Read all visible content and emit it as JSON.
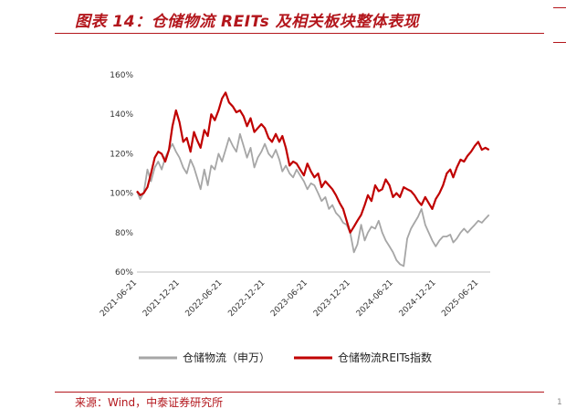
{
  "header": {
    "title": "图表 14：仓储物流 REITs 及相关板块整体表现"
  },
  "footer": {
    "source": "来源：Wind，中泰证券研究所",
    "page_mark": "1"
  },
  "colors": {
    "accent": "#b3161c",
    "series_grey": "#a6a6a6",
    "series_red": "#c00000"
  },
  "chart_data": {
    "type": "line",
    "title": "",
    "xlabel": "",
    "ylabel": "",
    "ylim": [
      60,
      160
    ],
    "yticks": [
      "60%",
      "80%",
      "100%",
      "120%",
      "140%",
      "160%"
    ],
    "xlim": [
      "2021-06-21",
      "2025-08-10"
    ],
    "xticks": [
      "2021-06-21",
      "2021-12-21",
      "2022-06-21",
      "2022-12-21",
      "2023-06-21",
      "2023-12-21",
      "2024-06-21",
      "2024-12-21",
      "2025-06-21"
    ],
    "grid": false,
    "legend": "bottom",
    "x": [
      "2021-06-21",
      "2021-07-05",
      "2021-07-20",
      "2021-08-05",
      "2021-08-20",
      "2021-09-05",
      "2021-09-20",
      "2021-10-05",
      "2021-10-20",
      "2021-11-05",
      "2021-11-20",
      "2021-12-05",
      "2021-12-20",
      "2022-01-05",
      "2022-01-20",
      "2022-02-05",
      "2022-02-20",
      "2022-03-05",
      "2022-03-20",
      "2022-04-05",
      "2022-04-20",
      "2022-05-05",
      "2022-05-20",
      "2022-06-05",
      "2022-06-20",
      "2022-07-05",
      "2022-07-20",
      "2022-08-05",
      "2022-08-20",
      "2022-09-05",
      "2022-09-20",
      "2022-10-05",
      "2022-10-20",
      "2022-11-05",
      "2022-11-20",
      "2022-12-05",
      "2022-12-20",
      "2023-01-05",
      "2023-01-20",
      "2023-02-05",
      "2023-02-20",
      "2023-03-05",
      "2023-03-20",
      "2023-04-05",
      "2023-04-20",
      "2023-05-05",
      "2023-05-20",
      "2023-06-05",
      "2023-06-20",
      "2023-07-05",
      "2023-07-20",
      "2023-08-05",
      "2023-08-20",
      "2023-09-05",
      "2023-09-20",
      "2023-10-05",
      "2023-10-20",
      "2023-11-05",
      "2023-11-20",
      "2023-12-05",
      "2023-12-20",
      "2024-01-05",
      "2024-01-20",
      "2024-02-05",
      "2024-02-20",
      "2024-03-05",
      "2024-03-20",
      "2024-04-05",
      "2024-04-20",
      "2024-05-05",
      "2024-05-20",
      "2024-06-05",
      "2024-06-20",
      "2024-07-05",
      "2024-07-20",
      "2024-08-05",
      "2024-08-20",
      "2024-09-05",
      "2024-09-20",
      "2024-10-05",
      "2024-10-20",
      "2024-11-05",
      "2024-11-20",
      "2024-12-05",
      "2024-12-20",
      "2025-01-05",
      "2025-01-20",
      "2025-02-05",
      "2025-02-20",
      "2025-03-05",
      "2025-03-20",
      "2025-04-05",
      "2025-04-20",
      "2025-05-05",
      "2025-05-20",
      "2025-06-05",
      "2025-06-20",
      "2025-07-05",
      "2025-07-20",
      "2025-08-05"
    ],
    "series": [
      {
        "name": "仓储物流（申万）",
        "color": "#a6a6a6",
        "values": [
          101,
          97,
          100,
          112,
          106,
          113,
          116,
          112,
          118,
          122,
          125,
          121,
          118,
          113,
          110,
          117,
          113,
          108,
          102,
          112,
          104,
          114,
          112,
          120,
          116,
          122,
          128,
          124,
          121,
          130,
          124,
          118,
          123,
          113,
          118,
          121,
          125,
          120,
          118,
          122,
          117,
          111,
          114,
          110,
          108,
          112,
          109,
          106,
          102,
          105,
          104,
          100,
          96,
          98,
          92,
          94,
          90,
          88,
          85,
          84,
          80,
          70,
          74,
          84,
          76,
          80,
          83,
          82,
          86,
          80,
          76,
          73,
          70,
          66,
          64,
          63,
          77,
          82,
          85,
          88,
          92,
          84,
          80,
          76,
          73,
          76,
          78,
          78,
          79,
          75,
          77,
          80,
          82,
          80,
          82,
          84,
          86,
          85,
          87,
          89
        ]
      },
      {
        "name": "仓储物流REITs指数",
        "color": "#c00000",
        "values": [
          101,
          99,
          100,
          103,
          110,
          118,
          121,
          120,
          116,
          122,
          134,
          142,
          136,
          126,
          128,
          121,
          131,
          127,
          123,
          132,
          129,
          140,
          137,
          142,
          148,
          151,
          146,
          144,
          141,
          142,
          139,
          134,
          138,
          131,
          133,
          135,
          133,
          128,
          126,
          130,
          126,
          129,
          123,
          114,
          116,
          115,
          112,
          109,
          115,
          111,
          108,
          110,
          103,
          106,
          104,
          102,
          99,
          95,
          92,
          86,
          80,
          83,
          86,
          89,
          94,
          99,
          96,
          104,
          101,
          102,
          107,
          104,
          98,
          100,
          98,
          103,
          102,
          101,
          99,
          96,
          94,
          98,
          95,
          92,
          97,
          100,
          104,
          110,
          112,
          108,
          113,
          117,
          116,
          119,
          121,
          124,
          126,
          122,
          123,
          122
        ]
      }
    ]
  }
}
